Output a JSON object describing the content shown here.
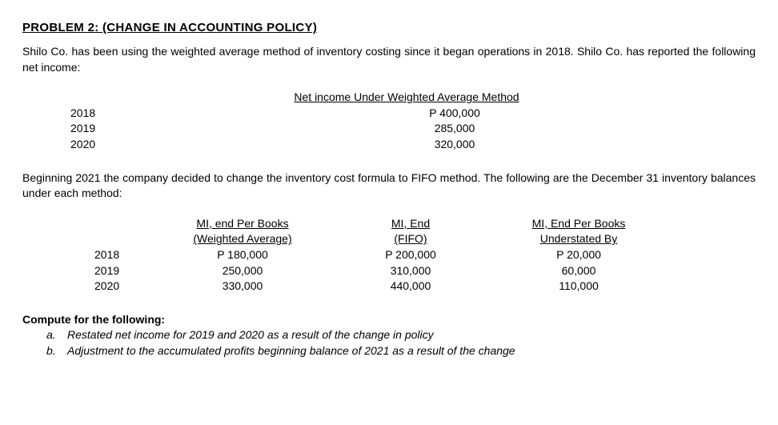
{
  "title": "PROBLEM 2: (CHANGE IN ACCOUNTING POLICY)",
  "intro": "Shilo Co. has been using the weighted average method of inventory costing since it began operations in 2018.  Shilo Co. has reported the following net income:",
  "income_header": "Net income Under Weighted Average Method",
  "income_rows": [
    {
      "year": "2018",
      "value": "P   400,000"
    },
    {
      "year": "2019",
      "value": "285,000"
    },
    {
      "year": "2020",
      "value": "320,000"
    }
  ],
  "mid_para": "Beginning 2021 the company decided to change the inventory cost formula to FIFO method. The following are the December 31 inventory balances under each method:",
  "mi_headers": {
    "col1_line1": "MI, end Per Books",
    "col1_line2": "(Weighted Average)",
    "col2_line1": "MI, End",
    "col2_line2": "(FIFO)",
    "col3_line1": "MI, End Per Books",
    "col3_line2": "Understated By"
  },
  "mi_rows": [
    {
      "year": "2018",
      "wa": "P 180,000",
      "fifo": "P 200,000",
      "under": "P 20,000"
    },
    {
      "year": "2019",
      "wa": "250,000",
      "fifo": "310,000",
      "under": "60,000"
    },
    {
      "year": "2020",
      "wa": "330,000",
      "fifo": "440,000",
      "under": "110,000"
    }
  ],
  "compute_title": "Compute for the following:",
  "compute_items": [
    {
      "marker": "a.",
      "text": "Restated net income for 2019 and 2020 as a result of the change in policy"
    },
    {
      "marker": "b.",
      "text": "Adjustment to the accumulated profits beginning balance of 2021 as a result of the change"
    }
  ]
}
